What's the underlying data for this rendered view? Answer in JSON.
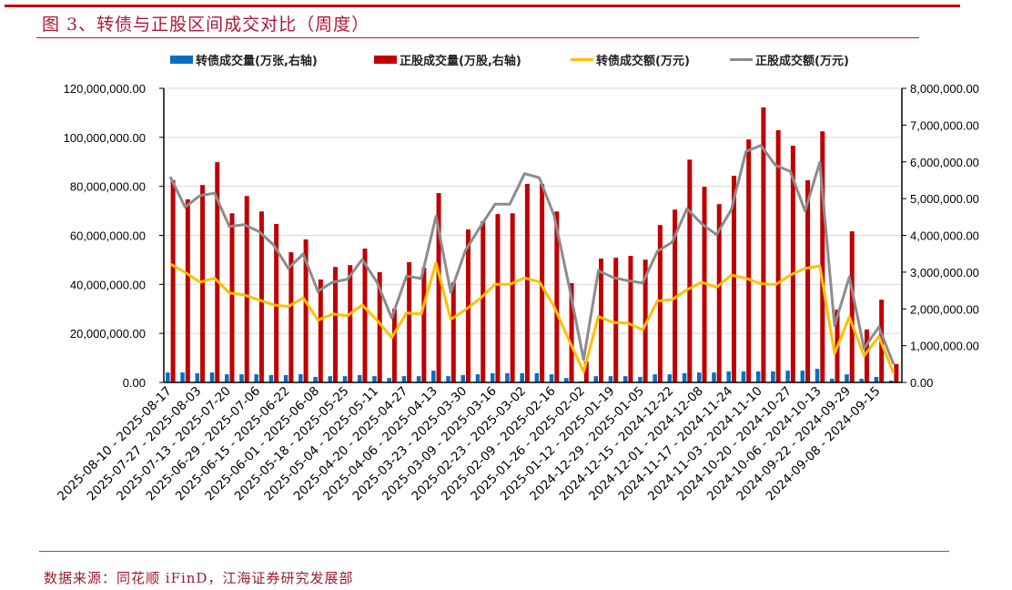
{
  "title": "图 3、转债与正股区间成交对比（周度）",
  "source": "数据来源：同花顺 iFinD，江海证券研究发展部",
  "colors": {
    "bond_volume": "#0070c0",
    "stock_volume": "#c00000",
    "bond_amount": "#ffc000",
    "stock_amount": "#8c8c8c",
    "accent": "#c00000"
  },
  "chart_data": {
    "type": "bar+line",
    "legend_position": "top",
    "grid": true,
    "left_axis": {
      "ylim": [
        0,
        120000000
      ],
      "ticks": [
        "0.00",
        "20,000,000.00",
        "40,000,000.00",
        "60,000,000.00",
        "80,000,000.00",
        "100,000,000.00",
        "120,000,000.00"
      ]
    },
    "right_axis": {
      "ylim": [
        0,
        8000000
      ],
      "ticks": [
        "0.00",
        "1,000,000.00",
        "2,000,000.00",
        "3,000,000.00",
        "4,000,000.00",
        "5,000,000.00",
        "6,000,000.00",
        "7,000,000.00",
        "8,000,000.00"
      ]
    },
    "categories": [
      "2025-08-10 - 2025-08-17",
      "",
      "2025-07-27 - 2025-08-03",
      "",
      "2025-07-13 - 2025-07-20",
      "",
      "2025-06-29 - 2025-07-06",
      "",
      "2025-06-15 - 2025-06-22",
      "",
      "2025-06-01 - 2025-06-08",
      "",
      "2025-05-18 - 2025-05-25",
      "",
      "2025-05-04 - 2025-05-11",
      "",
      "2025-04-20 - 2025-04-27",
      "",
      "2025-04-06 - 2025-04-13",
      "",
      "2025-03-23 - 2025-03-30",
      "",
      "2025-03-09 - 2025-03-16",
      "",
      "2025-02-23 - 2025-03-02",
      "",
      "2025-02-09 - 2025-02-16",
      "",
      "2025-01-26 - 2025-02-02",
      "",
      "2025-01-12 - 2025-01-19",
      "",
      "2024-12-29 - 2025-01-05",
      "",
      "2024-12-15 - 2024-12-22",
      "",
      "2024-12-01 - 2024-12-08",
      "",
      "2024-11-17 - 2024-11-24",
      "",
      "2024-11-03 - 2024-11-10",
      "",
      "2024-10-20 - 2024-10-27",
      "",
      "2024-10-06 - 2024-10-13",
      "",
      "2024-09-22 - 2024-09-29",
      "",
      "2024-09-08 - 2024-09-15",
      ""
    ],
    "series": [
      {
        "name": "转债成交量(万张,右轴)",
        "type": "bar",
        "axis": "right",
        "color": "#0070c0",
        "values": [
          270000,
          270000,
          250000,
          270000,
          220000,
          220000,
          220000,
          200000,
          200000,
          220000,
          150000,
          170000,
          170000,
          200000,
          170000,
          120000,
          170000,
          170000,
          320000,
          170000,
          200000,
          220000,
          250000,
          250000,
          250000,
          250000,
          220000,
          120000,
          30000,
          170000,
          170000,
          170000,
          150000,
          220000,
          220000,
          250000,
          270000,
          270000,
          300000,
          300000,
          300000,
          300000,
          320000,
          320000,
          370000,
          100000,
          220000,
          100000,
          150000,
          50000
        ]
      },
      {
        "name": "正股成交量(万股,右轴)",
        "type": "bar",
        "axis": "right",
        "color": "#c00000",
        "values": [
          5500000,
          4980000,
          5370000,
          5990000,
          4600000,
          5070000,
          4650000,
          4310000,
          3540000,
          3890000,
          2800000,
          3140000,
          3190000,
          3640000,
          3000000,
          2000000,
          3270000,
          3120000,
          5150000,
          2720000,
          4160000,
          4380000,
          4580000,
          4600000,
          5400000,
          5400000,
          4650000,
          2700000,
          570000,
          3370000,
          3390000,
          3440000,
          3340000,
          4280000,
          4700000,
          6060000,
          5320000,
          4850000,
          5620000,
          6610000,
          7480000,
          6860000,
          6440000,
          5500000,
          6830000,
          1980000,
          4110000,
          1440000,
          2250000,
          500000
        ]
      },
      {
        "name": "转债成交额(万元)",
        "type": "line",
        "axis": "left",
        "color": "#ffc000",
        "values": [
          48300000,
          44900000,
          40900000,
          42500000,
          36500000,
          35700000,
          33700000,
          31600000,
          31000000,
          34500000,
          25400000,
          27900000,
          27200000,
          31600000,
          25400000,
          18300000,
          28300000,
          27900000,
          48800000,
          25700000,
          29700000,
          34300000,
          40000000,
          40000000,
          42600000,
          41100000,
          31000000,
          17400000,
          4300000,
          26900000,
          24500000,
          24200000,
          21400000,
          33200000,
          33800000,
          37800000,
          40900000,
          38800000,
          43800000,
          42500000,
          40300000,
          39900000,
          43800000,
          46500000,
          47500000,
          11800000,
          26700000,
          10800000,
          18800000,
          3700000
        ]
      },
      {
        "name": "正股成交额(万元)",
        "type": "line",
        "axis": "left",
        "color": "#8c8c8c",
        "values": [
          83900000,
          71500000,
          76200000,
          77200000,
          63600000,
          64400000,
          61600000,
          56100000,
          46500000,
          52400000,
          37200000,
          40900000,
          42100000,
          50200000,
          40900000,
          26300000,
          43400000,
          42400000,
          67800000,
          36800000,
          53900000,
          63500000,
          72700000,
          72700000,
          85200000,
          83500000,
          68100000,
          39700000,
          9300000,
          45600000,
          42800000,
          41500000,
          40600000,
          53500000,
          57200000,
          70900000,
          64700000,
          60300000,
          70400000,
          94200000,
          96700000,
          88600000,
          86100000,
          70000000,
          89800000,
          23200000,
          43000000,
          13900000,
          22600000,
          7400000
        ]
      }
    ]
  }
}
